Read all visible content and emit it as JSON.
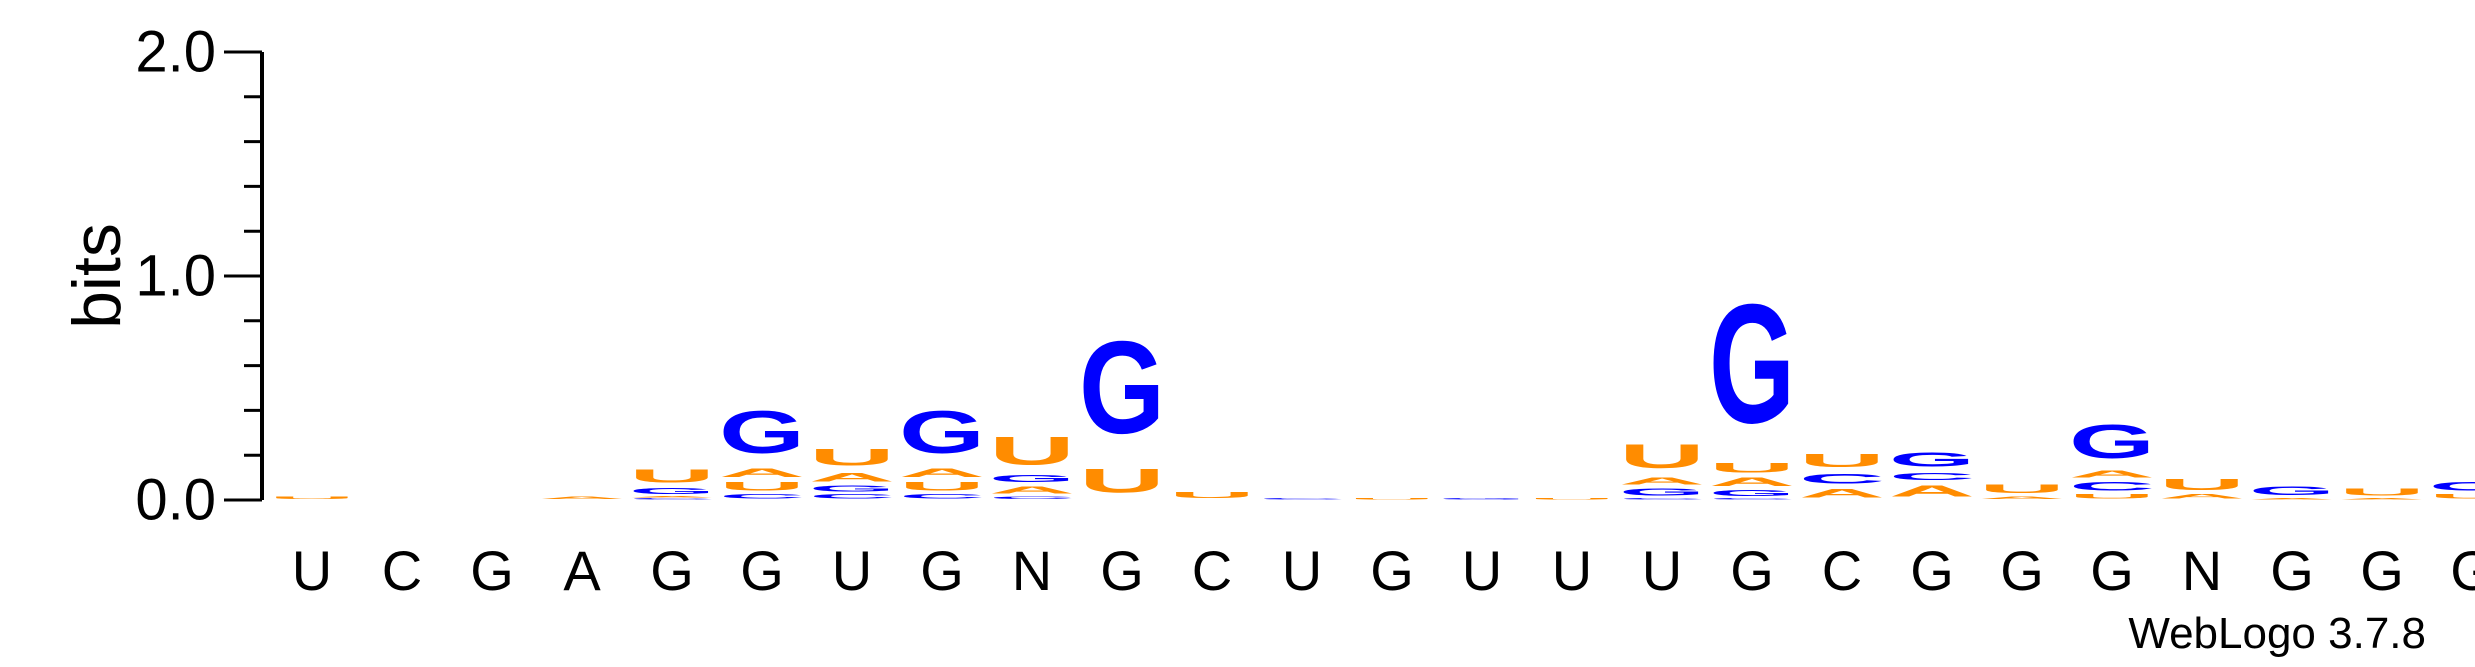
{
  "chart_data": {
    "type": "sequence-logo",
    "ylabel": "bits",
    "ylim": [
      0,
      2
    ],
    "yticks": [
      "0.0",
      "1.0",
      "2.0"
    ],
    "colors": {
      "G": "#0000FF",
      "C": "#0000FF",
      "A": "#FF8C00",
      "U": "#FF8C00",
      "axis": "#000000"
    },
    "positions": [
      {
        "label": "U",
        "letters": [
          {
            "base": "U",
            "bits": 0.02
          }
        ]
      },
      {
        "label": "C",
        "letters": []
      },
      {
        "label": "G",
        "letters": []
      },
      {
        "label": "A",
        "letters": [
          {
            "base": "A",
            "bits": 0.02
          }
        ]
      },
      {
        "label": "G",
        "letters": [
          {
            "base": "C",
            "bits": 0.01
          },
          {
            "base": "A",
            "bits": 0.01
          },
          {
            "base": "G",
            "bits": 0.04
          },
          {
            "base": "U",
            "bits": 0.09
          }
        ]
      },
      {
        "label": "G",
        "letters": [
          {
            "base": "C",
            "bits": 0.03
          },
          {
            "base": "U",
            "bits": 0.06
          },
          {
            "base": "A",
            "bits": 0.06
          },
          {
            "base": "G",
            "bits": 0.3
          }
        ]
      },
      {
        "label": "U",
        "letters": [
          {
            "base": "C",
            "bits": 0.03
          },
          {
            "base": "G",
            "bits": 0.04
          },
          {
            "base": "A",
            "bits": 0.06
          },
          {
            "base": "U",
            "bits": 0.12
          }
        ]
      },
      {
        "label": "G",
        "letters": [
          {
            "base": "C",
            "bits": 0.03
          },
          {
            "base": "U",
            "bits": 0.06
          },
          {
            "base": "A",
            "bits": 0.06
          },
          {
            "base": "G",
            "bits": 0.3
          }
        ]
      },
      {
        "label": "N",
        "letters": [
          {
            "base": "C",
            "bits": 0.02
          },
          {
            "base": "A",
            "bits": 0.05
          },
          {
            "base": "G",
            "bits": 0.05
          },
          {
            "base": "U",
            "bits": 0.2
          }
        ]
      },
      {
        "label": "G",
        "letters": [
          {
            "base": "U",
            "bits": 0.17
          },
          {
            "base": "G",
            "bits": 0.66
          }
        ]
      },
      {
        "label": "C",
        "letters": [
          {
            "base": "U",
            "bits": 0.04
          }
        ]
      },
      {
        "label": "U",
        "letters": [
          {
            "base": "C",
            "bits": 0.01
          }
        ]
      },
      {
        "label": "G",
        "letters": [
          {
            "base": "U",
            "bits": 0.01
          }
        ]
      },
      {
        "label": "U",
        "letters": [
          {
            "base": "G",
            "bits": 0.01
          }
        ]
      },
      {
        "label": "U",
        "letters": [
          {
            "base": "U",
            "bits": 0.01
          }
        ]
      },
      {
        "label": "U",
        "letters": [
          {
            "base": "C",
            "bits": 0.01
          },
          {
            "base": "G",
            "bits": 0.05
          },
          {
            "base": "A",
            "bits": 0.05
          },
          {
            "base": "U",
            "bits": 0.17
          }
        ]
      },
      {
        "label": "G",
        "letters": [
          {
            "base": "C",
            "bits": 0.01
          },
          {
            "base": "G",
            "bits": 0.04
          },
          {
            "base": "A",
            "bits": 0.06
          },
          {
            "base": "U",
            "bits": 0.07
          },
          {
            "base": "G",
            "bits": 0.85
          }
        ]
      },
      {
        "label": "C",
        "letters": [
          {
            "base": "A",
            "bits": 0.06
          },
          {
            "base": "C",
            "bits": 0.07
          },
          {
            "base": "U",
            "bits": 0.09
          }
        ]
      },
      {
        "label": "G",
        "letters": [
          {
            "base": "A",
            "bits": 0.08
          },
          {
            "base": "C",
            "bits": 0.05
          },
          {
            "base": "G",
            "bits": 0.1
          }
        ]
      },
      {
        "label": "G",
        "letters": [
          {
            "base": "A",
            "bits": 0.02
          },
          {
            "base": "U",
            "bits": 0.06
          }
        ]
      },
      {
        "label": "G",
        "letters": [
          {
            "base": "U",
            "bits": 0.03
          },
          {
            "base": "C",
            "bits": 0.06
          },
          {
            "base": "A",
            "bits": 0.05
          },
          {
            "base": "G",
            "bits": 0.24
          }
        ]
      },
      {
        "label": "N",
        "letters": [
          {
            "base": "A",
            "bits": 0.03
          },
          {
            "base": "U",
            "bits": 0.08
          }
        ]
      },
      {
        "label": "G",
        "letters": [
          {
            "base": "A",
            "bits": 0.01
          },
          {
            "base": "G",
            "bits": 0.06
          }
        ]
      },
      {
        "label": "G",
        "letters": [
          {
            "base": "A",
            "bits": 0.01
          },
          {
            "base": "U",
            "bits": 0.05
          }
        ]
      },
      {
        "label": "G",
        "letters": [
          {
            "base": "U",
            "bits": 0.03
          },
          {
            "base": "G",
            "bits": 0.06
          }
        ]
      }
    ],
    "annotation": "WebLogo 3.7.8"
  }
}
